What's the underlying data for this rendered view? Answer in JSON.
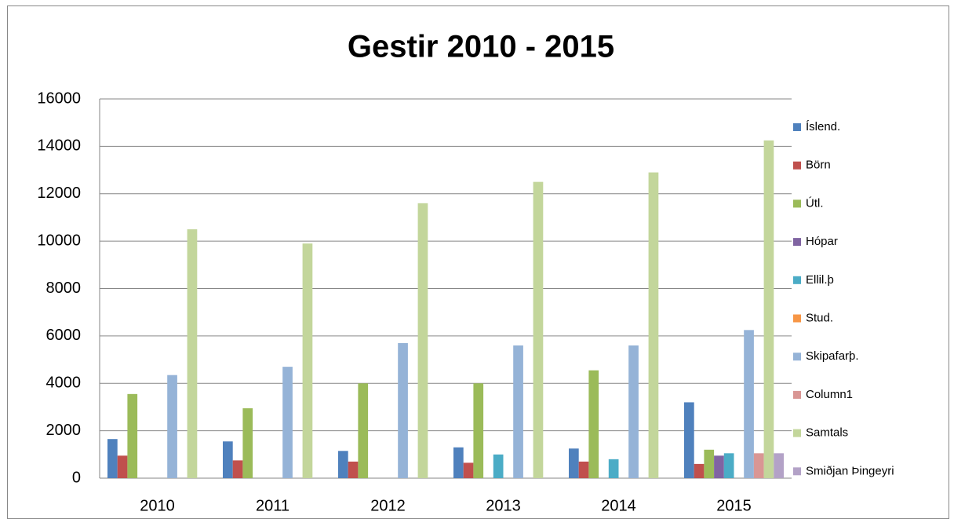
{
  "chart_data": {
    "type": "bar",
    "title": "Gestir 2010 - 2015",
    "categories": [
      "2010",
      "2011",
      "2012",
      "2013",
      "2014",
      "2015"
    ],
    "series": [
      {
        "name": "Íslend.",
        "color": "#4f81bd",
        "values": [
          1650,
          1550,
          1150,
          1300,
          1250,
          3200
        ]
      },
      {
        "name": "Börn",
        "color": "#c0504d",
        "values": [
          950,
          750,
          700,
          650,
          700,
          600
        ]
      },
      {
        "name": "Útl.",
        "color": "#9bbb59",
        "values": [
          3550,
          2950,
          4000,
          4000,
          4550,
          1200
        ]
      },
      {
        "name": "Hópar",
        "color": "#8064a2",
        "values": [
          null,
          null,
          null,
          null,
          null,
          950
        ]
      },
      {
        "name": "Ellil.þ",
        "color": "#4bacc6",
        "values": [
          null,
          null,
          null,
          1000,
          800,
          1050
        ]
      },
      {
        "name": "Stud.",
        "color": "#f79646",
        "values": [
          null,
          null,
          null,
          null,
          null,
          null
        ]
      },
      {
        "name": "Skipafarþ.",
        "color": "#95b3d7",
        "values": [
          4350,
          4700,
          5700,
          5600,
          5600,
          6250
        ]
      },
      {
        "name": "Column1",
        "color": "#d99694",
        "values": [
          null,
          null,
          null,
          null,
          null,
          1050
        ]
      },
      {
        "name": "Samtals",
        "color": "#c3d69b",
        "values": [
          10500,
          9900,
          11600,
          12500,
          12900,
          14250
        ]
      },
      {
        "name": "Smiðjan Þingeyri",
        "color": "#b3a2c7",
        "values": [
          null,
          null,
          null,
          null,
          null,
          1050
        ]
      }
    ],
    "ylim": [
      0,
      16000
    ],
    "yticks": [
      0,
      2000,
      4000,
      6000,
      8000,
      10000,
      12000,
      14000,
      16000
    ],
    "grid": true,
    "legend": "right"
  }
}
